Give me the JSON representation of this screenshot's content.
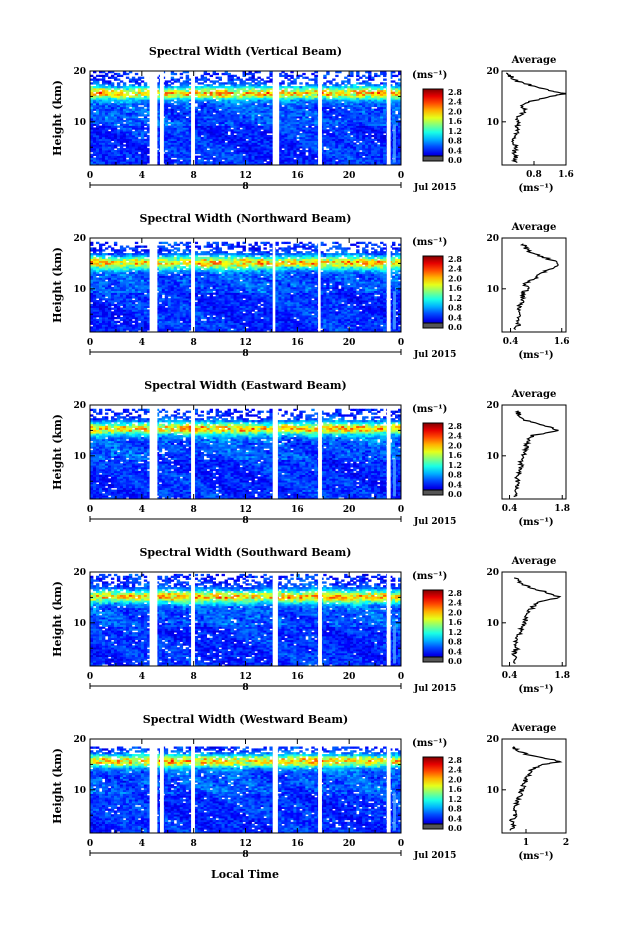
{
  "page": {
    "date_label": "Jul 2015",
    "xaxis_label": "Local Time",
    "day_label": "8",
    "cbar_units": "(ms⁻¹)",
    "cbar_ticks": [
      "2.8",
      "2.4",
      "2.0",
      "1.6",
      "1.2",
      "0.8",
      "0.4",
      "0.0"
    ],
    "avg_title": "Average",
    "avg_xlabel": "(ms⁻¹)",
    "ylabel": "Height (km)"
  },
  "chart_data": [
    {
      "type": "heatmap",
      "title": "Spectral Width (Vertical Beam)",
      "x": {
        "label": "Local Time",
        "ticks": [
          "0",
          "4",
          "8",
          "12",
          "16",
          "20",
          "0"
        ],
        "range": [
          0,
          24
        ]
      },
      "y": {
        "label": "Height (km)",
        "ticks": [
          "10",
          "20"
        ],
        "range": [
          1.5,
          20
        ]
      },
      "colorbar": {
        "units": "ms^-1",
        "range": [
          0.0,
          3.0
        ]
      },
      "data_gaps_hours": [
        [
          4.6,
          5.2
        ],
        [
          5.4,
          5.7
        ],
        [
          7.8,
          8.1
        ],
        [
          14.1,
          14.6
        ],
        [
          17.6,
          17.9
        ],
        [
          22.9,
          23.2
        ]
      ],
      "top_height_km": 19.7,
      "peak_layer_km": 15.5,
      "profile": {
        "xticks": [
          "0.8",
          "1.6"
        ],
        "xlim": [
          0.0,
          1.6
        ],
        "heights": [
          2,
          3,
          4,
          5,
          6,
          7,
          8,
          9,
          10,
          11,
          12,
          13,
          14,
          15,
          15.5,
          16,
          17,
          18,
          19,
          19.7
        ],
        "values": [
          0.32,
          0.36,
          0.3,
          0.34,
          0.3,
          0.33,
          0.38,
          0.36,
          0.42,
          0.4,
          0.6,
          0.5,
          0.72,
          1.25,
          1.58,
          1.3,
          0.8,
          0.38,
          0.2,
          0.15
        ]
      }
    },
    {
      "type": "heatmap",
      "title": "Spectral Width (Northward Beam)",
      "x": {
        "label": "Local Time",
        "ticks": [
          "0",
          "4",
          "8",
          "12",
          "16",
          "20",
          "0"
        ],
        "range": [
          0,
          24
        ]
      },
      "y": {
        "label": "Height (km)",
        "ticks": [
          "10",
          "20"
        ],
        "range": [
          1.5,
          20
        ]
      },
      "colorbar": {
        "units": "ms^-1",
        "range": [
          0.0,
          3.0
        ]
      },
      "data_gaps_hours": [
        [
          4.6,
          5.2
        ],
        [
          7.8,
          8.1
        ],
        [
          14.1,
          14.3
        ],
        [
          17.6,
          17.8
        ],
        [
          22.9,
          23.2
        ]
      ],
      "top_height_km": 19.2,
      "peak_layer_km": 15.0,
      "profile": {
        "xticks": [
          "0.4",
          "1.6"
        ],
        "xlim": [
          0.2,
          1.7
        ],
        "heights": [
          2,
          3,
          4,
          5,
          6,
          7,
          8,
          9,
          10,
          11,
          12,
          13,
          14,
          15,
          16,
          17,
          18,
          19
        ],
        "values": [
          0.5,
          0.6,
          0.55,
          0.65,
          0.6,
          0.62,
          0.7,
          0.66,
          0.8,
          0.75,
          0.95,
          1.1,
          1.35,
          1.55,
          1.25,
          0.9,
          0.75,
          0.7
        ]
      }
    },
    {
      "type": "heatmap",
      "title": "Spectral Width (Eastward Beam)",
      "x": {
        "label": "Local Time",
        "ticks": [
          "0",
          "4",
          "8",
          "12",
          "16",
          "20",
          "0"
        ],
        "range": [
          0,
          24
        ]
      },
      "y": {
        "label": "Height (km)",
        "ticks": [
          "10",
          "20"
        ],
        "range": [
          1.5,
          20
        ]
      },
      "colorbar": {
        "units": "ms^-1",
        "range": [
          0.0,
          3.0
        ]
      },
      "data_gaps_hours": [
        [
          4.6,
          5.2
        ],
        [
          7.8,
          8.1
        ],
        [
          14.1,
          14.5
        ],
        [
          17.6,
          17.9
        ],
        [
          22.9,
          23.2
        ]
      ],
      "top_height_km": 19.2,
      "peak_layer_km": 15.2,
      "profile": {
        "xticks": [
          "0.4",
          "1.8"
        ],
        "xlim": [
          0.2,
          1.9
        ],
        "heights": [
          2,
          3,
          4,
          5,
          6,
          7,
          8,
          9,
          10,
          11,
          12,
          13,
          14,
          15,
          16,
          17,
          18,
          19
        ],
        "values": [
          0.55,
          0.6,
          0.58,
          0.62,
          0.6,
          0.65,
          0.7,
          0.7,
          0.78,
          0.8,
          0.85,
          0.9,
          1.0,
          1.7,
          1.3,
          0.8,
          0.65,
          0.6
        ]
      }
    },
    {
      "type": "heatmap",
      "title": "Spectral Width (Southward Beam)",
      "x": {
        "label": "Local Time",
        "ticks": [
          "0",
          "4",
          "8",
          "12",
          "16",
          "20",
          "0"
        ],
        "range": [
          0,
          24
        ]
      },
      "y": {
        "label": "Height (km)",
        "ticks": [
          "10",
          "20"
        ],
        "range": [
          1.5,
          20
        ]
      },
      "colorbar": {
        "units": "ms^-1",
        "range": [
          0.0,
          3.0
        ]
      },
      "data_gaps_hours": [
        [
          4.6,
          5.2
        ],
        [
          7.8,
          8.1
        ],
        [
          14.1,
          14.5
        ],
        [
          17.6,
          17.9
        ],
        [
          22.9,
          23.2
        ]
      ],
      "top_height_km": 19.4,
      "peak_layer_km": 15.0,
      "profile": {
        "xticks": [
          "0.4",
          "1.8"
        ],
        "xlim": [
          0.2,
          1.9
        ],
        "heights": [
          2,
          3,
          4,
          5,
          6,
          7,
          8,
          9,
          10,
          11,
          12,
          13,
          14,
          15,
          16,
          17,
          18,
          19
        ],
        "values": [
          0.5,
          0.55,
          0.5,
          0.6,
          0.58,
          0.62,
          0.66,
          0.7,
          0.8,
          0.85,
          0.9,
          1.0,
          1.15,
          1.75,
          1.4,
          0.9,
          0.7,
          0.55
        ]
      }
    },
    {
      "type": "heatmap",
      "title": "Spectral Width (Westward Beam)",
      "x": {
        "label": "Local Time",
        "ticks": [
          "0",
          "4",
          "8",
          "12",
          "16",
          "20",
          "0"
        ],
        "range": [
          0,
          24
        ]
      },
      "y": {
        "label": "Height (km)",
        "ticks": [
          "10",
          "20"
        ],
        "range": [
          1.5,
          20
        ]
      },
      "colorbar": {
        "units": "ms^-1",
        "range": [
          0.0,
          3.0
        ]
      },
      "data_gaps_hours": [
        [
          4.6,
          5.2
        ],
        [
          5.4,
          5.7
        ],
        [
          7.8,
          8.1
        ],
        [
          14.1,
          14.5
        ],
        [
          17.6,
          17.9
        ],
        [
          22.9,
          23.2
        ]
      ],
      "top_height_km": 18.5,
      "peak_layer_km": 15.5,
      "profile": {
        "xticks": [
          "1",
          "2"
        ],
        "xlim": [
          0.4,
          2.0
        ],
        "heights": [
          2,
          3,
          4,
          5,
          6,
          7,
          8,
          9,
          10,
          11,
          12,
          13,
          14,
          15,
          15.5,
          16,
          17,
          18,
          18.5
        ],
        "values": [
          0.62,
          0.7,
          0.66,
          0.74,
          0.7,
          0.75,
          0.82,
          0.85,
          0.9,
          0.95,
          1.0,
          1.1,
          1.15,
          1.4,
          1.9,
          1.6,
          1.0,
          0.75,
          0.7
        ]
      }
    }
  ]
}
